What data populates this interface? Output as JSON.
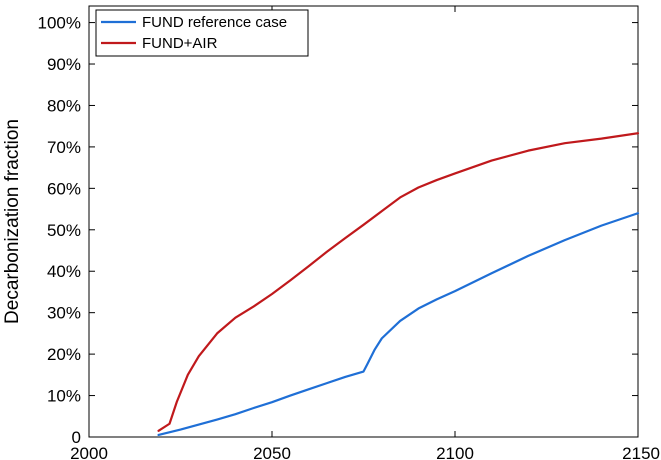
{
  "chart_data": {
    "type": "line",
    "title": "",
    "xlabel": "",
    "ylabel": "Decarbonization fraction",
    "xlim": [
      2000,
      2150
    ],
    "ylim": [
      0,
      1.04
    ],
    "x_ticks": [
      2000,
      2050,
      2100,
      2150
    ],
    "x_tick_labels": [
      "2000",
      "2050",
      "2100",
      "2150"
    ],
    "y_ticks": [
      0,
      0.1,
      0.2,
      0.3,
      0.4,
      0.5,
      0.6,
      0.7,
      0.8,
      0.9,
      1.0
    ],
    "y_tick_labels": [
      "0",
      "10%",
      "20%",
      "30%",
      "40%",
      "50%",
      "60%",
      "70%",
      "80%",
      "90%",
      "100%"
    ],
    "grid": false,
    "legend_position": "top-left",
    "series": [
      {
        "name": "FUND reference case",
        "color": "#1f6fd6",
        "x": [
          2019,
          2025,
          2030,
          2035,
          2040,
          2045,
          2050,
          2055,
          2060,
          2065,
          2070,
          2075,
          2076,
          2078,
          2080,
          2085,
          2090,
          2095,
          2100,
          2110,
          2120,
          2130,
          2140,
          2150
        ],
        "y": [
          0.005,
          0.018,
          0.03,
          0.042,
          0.055,
          0.07,
          0.084,
          0.1,
          0.115,
          0.13,
          0.145,
          0.158,
          0.175,
          0.21,
          0.238,
          0.28,
          0.31,
          0.332,
          0.352,
          0.395,
          0.437,
          0.475,
          0.51,
          0.54
        ]
      },
      {
        "name": "FUND+AIR",
        "color": "#c0191c",
        "x": [
          2019,
          2022,
          2024,
          2027,
          2030,
          2035,
          2040,
          2045,
          2050,
          2055,
          2060,
          2065,
          2070,
          2075,
          2080,
          2085,
          2090,
          2095,
          2100,
          2110,
          2120,
          2130,
          2140,
          2150
        ],
        "y": [
          0.015,
          0.032,
          0.085,
          0.15,
          0.195,
          0.25,
          0.288,
          0.315,
          0.345,
          0.378,
          0.412,
          0.447,
          0.48,
          0.512,
          0.545,
          0.578,
          0.602,
          0.62,
          0.636,
          0.667,
          0.691,
          0.709,
          0.72,
          0.733
        ]
      }
    ]
  }
}
